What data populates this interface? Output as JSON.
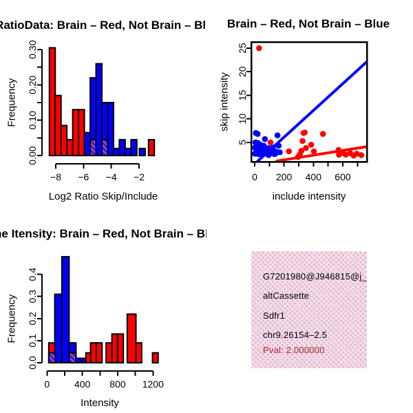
{
  "figure": {
    "background": "#FFFFFF",
    "colors": {
      "brain_red": "#FF0000",
      "not_brain_blue": "#0000FF",
      "overlap_hatch_blue": "#2020D8",
      "overlap_hatch_magenta": "#C040C0",
      "axis_black": "#000000",
      "pval_dark_red": "#9B2C2C",
      "info_box_pink": "#F9D8F2",
      "info_box_dot_tan": "#C8C0A4"
    }
  },
  "chart_data": [
    {
      "id": "log2_ratio_hist",
      "type": "bar",
      "title": "RatioData: Brain – Red, Not Brain – Blue",
      "title_visible": "atioData: Brain – Red, Not Brain – Blu",
      "xlabel": "Log2 Ratio Skip/Include",
      "ylabel": "Frequency",
      "xlim": [
        -8.6,
        -0.6
      ],
      "ylim": [
        0,
        0.3
      ],
      "grid": false,
      "xticks": [
        {
          "v": -8,
          "t": "−8"
        },
        {
          "v": -6,
          "t": "−6"
        },
        {
          "v": -4,
          "t": "−4"
        },
        {
          "v": -2,
          "t": "−2"
        }
      ],
      "yticks": [
        {
          "v": 0,
          "t": "0.00"
        },
        {
          "v": 0.05,
          "t": ""
        },
        {
          "v": 0.1,
          "t": "0.10"
        },
        {
          "v": 0.15,
          "t": ""
        },
        {
          "v": 0.2,
          "t": "0.20"
        },
        {
          "v": 0.25,
          "t": ""
        },
        {
          "v": 0.3,
          "t": "0.30"
        }
      ],
      "bars": [
        {
          "x0": -8.46,
          "x1": -8.04,
          "h": 0.305,
          "color": "red"
        },
        {
          "x0": -8.04,
          "x1": -7.62,
          "h": 0.17,
          "color": "red"
        },
        {
          "x0": -7.62,
          "x1": -7.2,
          "h": 0.085,
          "color": "red"
        },
        {
          "x0": -7.2,
          "x1": -6.78,
          "h": 0.045,
          "color": "red"
        },
        {
          "x0": -6.78,
          "x1": -6.36,
          "h": 0.13,
          "color": "red"
        },
        {
          "x0": -6.36,
          "x1": -5.94,
          "h": 0.13,
          "color": "red"
        },
        {
          "x0": -5.94,
          "x1": -5.52,
          "h": 0.065,
          "color": "blue"
        },
        {
          "x0": -5.52,
          "x1": -5.1,
          "h": 0.22,
          "color": "blue"
        },
        {
          "x0": -5.1,
          "x1": -4.68,
          "h": 0.26,
          "color": "blue"
        },
        {
          "x0": -4.68,
          "x1": -4.26,
          "h": 0.15,
          "color": "blue"
        },
        {
          "x0": -4.26,
          "x1": -3.84,
          "h": 0.15,
          "color": "blue"
        },
        {
          "x0": -3.84,
          "x1": -3.42,
          "h": 0.02,
          "color": "blue"
        },
        {
          "x0": -3.42,
          "x1": -3.0,
          "h": 0.045,
          "color": "blue"
        },
        {
          "x0": -3.0,
          "x1": -2.58,
          "h": 0.02,
          "color": "blue"
        },
        {
          "x0": -2.58,
          "x1": -2.16,
          "h": 0.045,
          "color": "blue"
        },
        {
          "x0": -1.98,
          "x1": -1.56,
          "h": 0.02,
          "color": "blue"
        },
        {
          "x0": -1.32,
          "x1": -0.9,
          "h": 0.045,
          "color": "red"
        }
      ],
      "overlap_hatch_bars": [
        {
          "x0": -5.52,
          "x1": -5.1,
          "h": 0.045
        },
        {
          "x0": -4.68,
          "x1": -4.26,
          "h": 0.045
        }
      ]
    },
    {
      "id": "intensity_scatter",
      "type": "scatter",
      "title": "Brain – Red, Not Brain – Blue",
      "xlabel": "include intensity",
      "ylabel": "skip intensity",
      "xlim": [
        -20,
        765
      ],
      "ylim": [
        0.8,
        26
      ],
      "grid": false,
      "xticks": [
        {
          "v": 0,
          "t": "0"
        },
        {
          "v": 100,
          "t": ""
        },
        {
          "v": 200,
          "t": "200"
        },
        {
          "v": 300,
          "t": ""
        },
        {
          "v": 400,
          "t": "400"
        },
        {
          "v": 500,
          "t": ""
        },
        {
          "v": 600,
          "t": "600"
        },
        {
          "v": 700,
          "t": ""
        }
      ],
      "yticks": [
        {
          "v": 5,
          "t": "5"
        },
        {
          "v": 10,
          "t": "10"
        },
        {
          "v": 15,
          "t": "15"
        },
        {
          "v": 20,
          "t": "20"
        },
        {
          "v": 25,
          "t": "25"
        }
      ],
      "series": [
        {
          "name": "brain",
          "color": "#FF0000",
          "points": [
            [
              30,
              25
            ],
            [
              108,
              5
            ],
            [
              233,
              3.1
            ],
            [
              295,
              1.9
            ],
            [
              307,
              2.4
            ],
            [
              318,
              3.2
            ],
            [
              326,
              5.3
            ],
            [
              333,
              7
            ],
            [
              341,
              7.1
            ],
            [
              349,
              3.8
            ],
            [
              385,
              4.5
            ],
            [
              403,
              3.1
            ],
            [
              465,
              6.8
            ],
            [
              571,
              3.4
            ],
            [
              574,
              2.4
            ],
            [
              597,
              2.8
            ],
            [
              620,
              2.4
            ],
            [
              651,
              2.7
            ],
            [
              674,
              2.2
            ],
            [
              695,
              2.6
            ],
            [
              726,
              2.3
            ]
          ],
          "fit_line": {
            "x0": 150,
            "y0": 1.05,
            "x1": 765,
            "y1": 4.1
          }
        },
        {
          "name": "not_brain",
          "color": "#0000FF",
          "points": [
            [
              8,
              7
            ],
            [
              20,
              6.8
            ],
            [
              155,
              6.5
            ],
            [
              70,
              5.7
            ],
            [
              5,
              5
            ],
            [
              20,
              4.9
            ],
            [
              35,
              4.6
            ],
            [
              15,
              4.4
            ],
            [
              62,
              4.3
            ],
            [
              163,
              4.3
            ],
            [
              2,
              3.9
            ],
            [
              124,
              3.9
            ],
            [
              45,
              3.8
            ],
            [
              93,
              3.8
            ],
            [
              39,
              3.4
            ],
            [
              110,
              3.4
            ],
            [
              68,
              3.3
            ],
            [
              12,
              3.3
            ],
            [
              30,
              3.2
            ],
            [
              85,
              3.2
            ],
            [
              59,
              3.1
            ],
            [
              116,
              3.1
            ],
            [
              130,
              3.1
            ],
            [
              55,
              3
            ],
            [
              148,
              3
            ],
            [
              171,
              2.9
            ],
            [
              23,
              2.8
            ],
            [
              101,
              2.8
            ],
            [
              2,
              2.6
            ],
            [
              47,
              2.6
            ],
            [
              78,
              2.6
            ],
            [
              140,
              2.6
            ],
            [
              25,
              2.5
            ],
            [
              90,
              2.5
            ],
            [
              135,
              2.5
            ],
            [
              50,
              2.4
            ],
            [
              95,
              2.3
            ],
            [
              108,
              2.7
            ]
          ],
          "fit_line": {
            "x0": 20,
            "y0": 1,
            "x1": 760,
            "y1": 22
          }
        }
      ]
    },
    {
      "id": "gene_intensity_hist",
      "type": "bar",
      "title": "Gene Itensity: Brain – Red, Not Brain – Blue",
      "title_visible": "ne Itensity: Brain – Red, Not Brain – B",
      "xlabel": "Intensity",
      "ylabel": "Frequency",
      "xlim": [
        0,
        1300
      ],
      "ylim": [
        0,
        0.48
      ],
      "grid": false,
      "xticks": [
        {
          "v": 0,
          "t": "0"
        },
        {
          "v": 200,
          "t": ""
        },
        {
          "v": 400,
          "t": "400"
        },
        {
          "v": 600,
          "t": ""
        },
        {
          "v": 800,
          "t": "800"
        },
        {
          "v": 1000,
          "t": ""
        },
        {
          "v": 1200,
          "t": "1200"
        }
      ],
      "yticks": [
        {
          "v": 0,
          "t": "0.0"
        },
        {
          "v": 0.1,
          "t": "0.1"
        },
        {
          "v": 0.2,
          "t": "0.2"
        },
        {
          "v": 0.3,
          "t": "0.3"
        },
        {
          "v": 0.4,
          "t": "0.4"
        }
      ],
      "bars": [
        {
          "x0": 20,
          "x1": 99,
          "h": 0.09,
          "color": "red"
        },
        {
          "x0": 88,
          "x1": 168,
          "h": 0.31,
          "color": "blue"
        },
        {
          "x0": 168,
          "x1": 250,
          "h": 0.48,
          "color": "blue"
        },
        {
          "x0": 250,
          "x1": 328,
          "h": 0.09,
          "color": "blue"
        },
        {
          "x0": 328,
          "x1": 392,
          "h": 0.02,
          "color": "blue"
        },
        {
          "x0": 392,
          "x1": 452,
          "h": 0.02,
          "color": "blue"
        },
        {
          "x0": 440,
          "x1": 493,
          "h": 0.045,
          "color": "red"
        },
        {
          "x0": 493,
          "x1": 558,
          "h": 0.09,
          "color": "red"
        },
        {
          "x0": 558,
          "x1": 623,
          "h": 0.09,
          "color": "red"
        },
        {
          "x0": 669,
          "x1": 735,
          "h": 0.09,
          "color": "red"
        },
        {
          "x0": 735,
          "x1": 799,
          "h": 0.13,
          "color": "red"
        },
        {
          "x0": 799,
          "x1": 864,
          "h": 0.13,
          "color": "red"
        },
        {
          "x0": 908,
          "x1": 1007,
          "h": 0.22,
          "color": "red"
        },
        {
          "x0": 1007,
          "x1": 1072,
          "h": 0.09,
          "color": "red"
        },
        {
          "x0": 1194,
          "x1": 1258,
          "h": 0.045,
          "color": "red"
        }
      ],
      "overlap_hatch_bars": [
        {
          "x0": 20,
          "x1": 95,
          "h": 0.045
        },
        {
          "x0": 250,
          "x1": 328,
          "h": 0.045
        }
      ]
    }
  ],
  "info_box": {
    "lines": [
      "G7201980@J946815@j_",
      "altCassette",
      "Sdfr1",
      "chr9.26154–2.5",
      "Pval: 2.000000"
    ]
  }
}
